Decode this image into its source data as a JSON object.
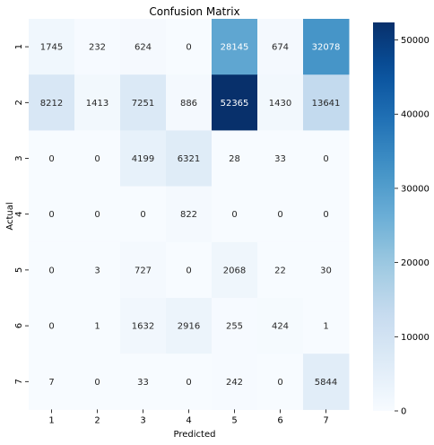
{
  "chart_data": {
    "type": "heatmap",
    "title": "Confusion Matrix",
    "xlabel": "Predicted",
    "ylabel": "Actual",
    "x_categories": [
      "1",
      "2",
      "3",
      "4",
      "5",
      "6",
      "7"
    ],
    "y_categories": [
      "1",
      "2",
      "3",
      "4",
      "5",
      "6",
      "7"
    ],
    "values": [
      [
        1745,
        232,
        624,
        0,
        28145,
        674,
        32078
      ],
      [
        8212,
        1413,
        7251,
        886,
        52365,
        1430,
        13641
      ],
      [
        0,
        0,
        4199,
        6321,
        28,
        33,
        0
      ],
      [
        0,
        0,
        0,
        822,
        0,
        0,
        0
      ],
      [
        0,
        3,
        727,
        0,
        2068,
        22,
        30
      ],
      [
        0,
        1,
        1632,
        2916,
        255,
        424,
        1
      ],
      [
        7,
        0,
        33,
        0,
        242,
        0,
        5844
      ]
    ],
    "colormap": "Blues",
    "color_range": [
      0,
      52365
    ],
    "colorbar_ticks": [
      0,
      10000,
      20000,
      30000,
      40000,
      50000
    ]
  }
}
